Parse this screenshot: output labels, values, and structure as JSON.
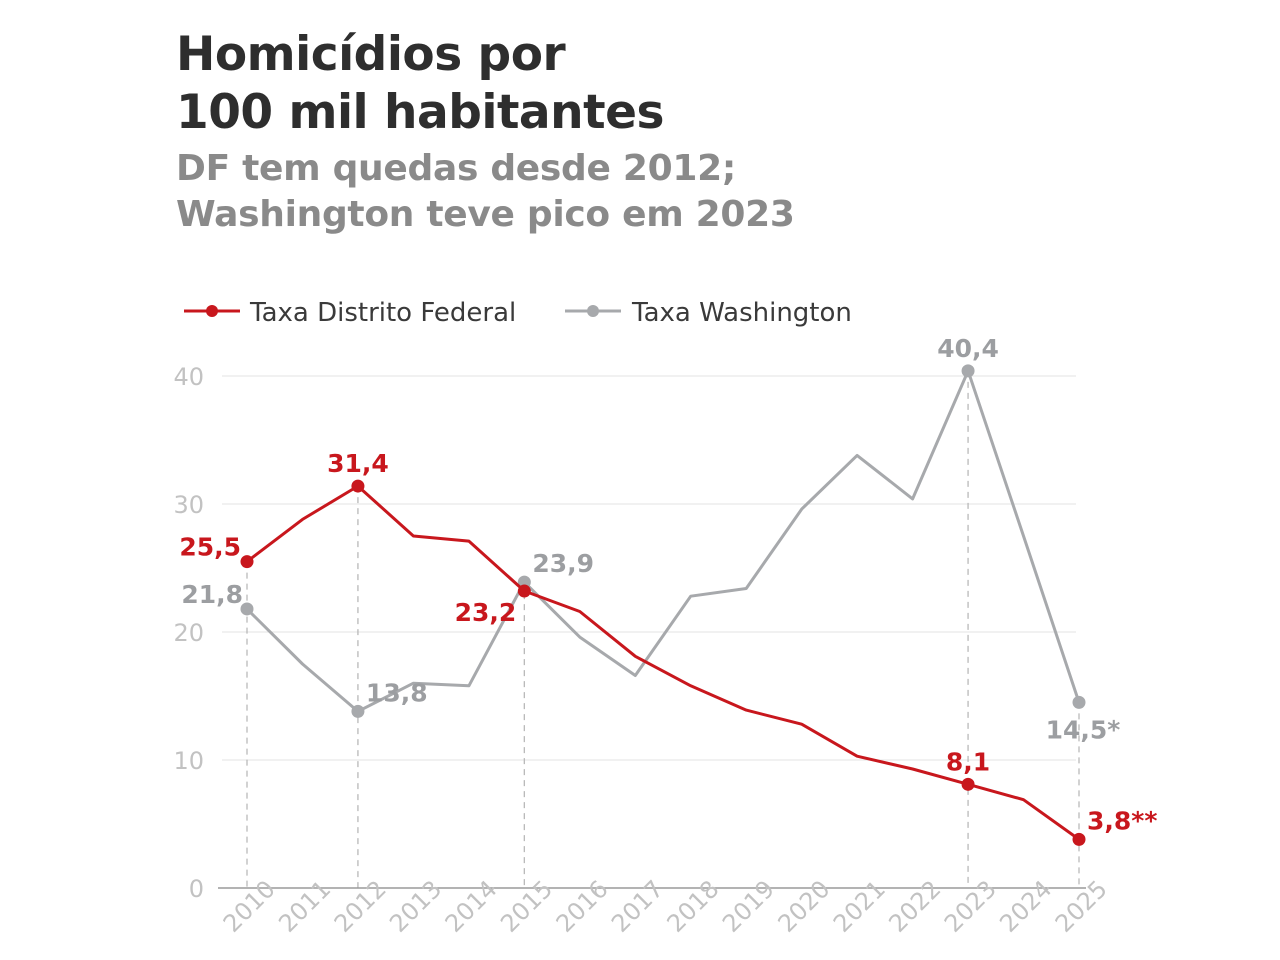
{
  "header": {
    "title_line1": "Homicídios por",
    "title_line2": "100 mil habitantes",
    "subtitle_line1": "DF tem quedas desde 2012;",
    "subtitle_line2": "Washington teve pico em 2023"
  },
  "colors": {
    "df": "#c8171d",
    "washington": "#a7a9ac",
    "grid": "#e3e3e3",
    "axis_text": "#c2c2c2",
    "title": "#2e2e2e",
    "subtitle": "#8a8a8a"
  },
  "chart_data": {
    "type": "line",
    "title": "Homicídios por 100 mil habitantes",
    "subtitle": "DF tem quedas desde 2012; Washington teve pico em 2023",
    "xlabel": "",
    "ylabel": "",
    "ylim": [
      0,
      40
    ],
    "yticks": [
      0,
      10,
      20,
      30,
      40
    ],
    "grid": true,
    "legend_position": "top-left",
    "x": [
      "2010",
      "2011",
      "2012",
      "2013",
      "2014",
      "2015",
      "2016",
      "2017",
      "2018",
      "2019",
      "2020",
      "2021",
      "2022",
      "2023",
      "2024",
      "2025"
    ],
    "highlight_years": [
      "2010",
      "2012",
      "2015",
      "2023",
      "2025"
    ],
    "series": [
      {
        "name": "Taxa Distrito Federal",
        "key": "df",
        "values": [
          25.5,
          28.8,
          31.4,
          27.5,
          27.1,
          23.2,
          21.6,
          18.1,
          15.8,
          13.9,
          12.8,
          10.3,
          9.3,
          8.1,
          6.9,
          3.8
        ],
        "markers": [
          0,
          2,
          5,
          13,
          15
        ],
        "labels": [
          {
            "index": 0,
            "text": "25,5",
            "pos": "left"
          },
          {
            "index": 2,
            "text": "31,4",
            "pos": "top"
          },
          {
            "index": 5,
            "text": "23,2",
            "pos": "bottom-left"
          },
          {
            "index": 13,
            "text": "8,1",
            "pos": "top"
          },
          {
            "index": 15,
            "text": "3,8**",
            "pos": "top-right"
          }
        ]
      },
      {
        "name": "Taxa Washington",
        "key": "washington",
        "values": [
          21.8,
          17.5,
          13.8,
          16.0,
          15.8,
          23.9,
          19.6,
          16.6,
          22.8,
          23.4,
          29.6,
          33.8,
          30.4,
          40.4,
          27.5,
          14.5
        ],
        "markers": [
          0,
          2,
          5,
          13,
          15
        ],
        "labels": [
          {
            "index": 0,
            "text": "21,8",
            "pos": "top-left"
          },
          {
            "index": 2,
            "text": "13,8",
            "pos": "top-right"
          },
          {
            "index": 5,
            "text": "23,9",
            "pos": "top-right"
          },
          {
            "index": 13,
            "text": "40,4",
            "pos": "top"
          },
          {
            "index": 15,
            "text": "14,5*",
            "pos": "bottom"
          }
        ]
      }
    ]
  }
}
